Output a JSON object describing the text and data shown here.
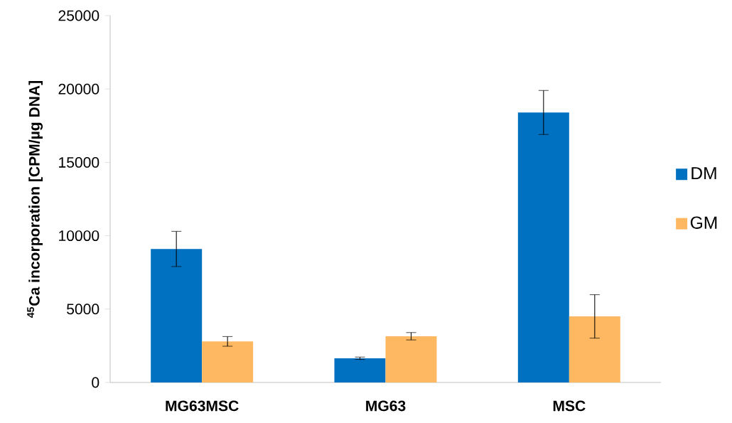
{
  "chart_data": {
    "type": "bar",
    "ylabel": "$^{45}$Ca incorporation [CPM/µg DNA]",
    "categories": [
      "MG63MSC",
      "MG63",
      "MSC"
    ],
    "series": [
      {
        "name": "DM",
        "color": "#0070c0",
        "values": [
          9100,
          1650,
          18400
        ],
        "errors": [
          1200,
          80,
          1500
        ]
      },
      {
        "name": "GM",
        "color": "#ffb862",
        "values": [
          2800,
          3150,
          4500
        ],
        "errors": [
          330,
          250,
          1480
        ]
      }
    ],
    "ylim": [
      0,
      25000
    ],
    "yticks": [
      0,
      5000,
      10000,
      15000,
      20000,
      25000
    ],
    "legend": "right",
    "grid": false
  }
}
